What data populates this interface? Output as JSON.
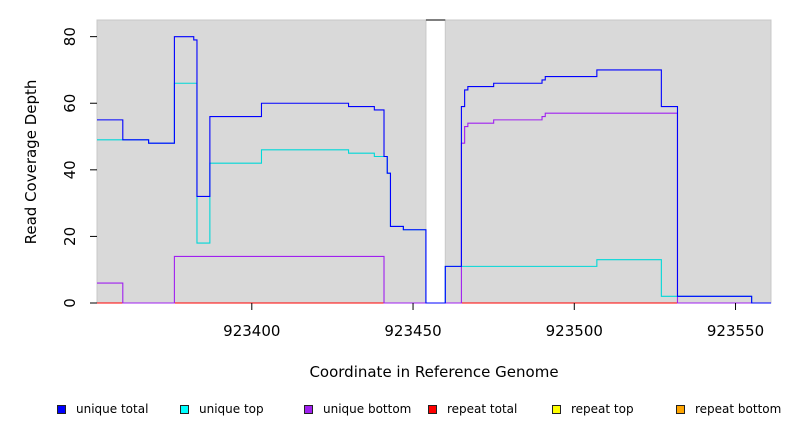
{
  "chart_data": {
    "type": "line",
    "xlabel": "Coordinate in Reference Genome",
    "ylabel": "Read Coverage Depth",
    "xlim": [
      923352,
      923561
    ],
    "ylim": [
      0,
      85
    ],
    "x_ticks": [
      923400,
      923450,
      923500,
      923550
    ],
    "y_ticks": [
      0,
      20,
      40,
      60,
      80
    ],
    "gap_region": [
      923454,
      923460
    ],
    "series": [
      {
        "name": "unique total",
        "color": "#0000ff",
        "points": [
          [
            923352,
            55
          ],
          [
            923360,
            55
          ],
          [
            923360,
            49
          ],
          [
            923368,
            49
          ],
          [
            923368,
            48
          ],
          [
            923376,
            48
          ],
          [
            923376,
            80
          ],
          [
            923382,
            80
          ],
          [
            923382,
            79
          ],
          [
            923383,
            79
          ],
          [
            923383,
            32
          ],
          [
            923387,
            32
          ],
          [
            923387,
            56
          ],
          [
            923403,
            56
          ],
          [
            923403,
            60
          ],
          [
            923430,
            60
          ],
          [
            923430,
            59
          ],
          [
            923438,
            59
          ],
          [
            923438,
            58
          ],
          [
            923441,
            58
          ],
          [
            923441,
            44
          ],
          [
            923442,
            44
          ],
          [
            923442,
            39
          ],
          [
            923443,
            39
          ],
          [
            923443,
            23
          ],
          [
            923447,
            23
          ],
          [
            923447,
            22
          ],
          [
            923454,
            22
          ],
          [
            923454,
            0
          ],
          [
            923460,
            0
          ],
          [
            923460,
            11
          ],
          [
            923465,
            11
          ],
          [
            923465,
            59
          ],
          [
            923466,
            59
          ],
          [
            923466,
            64
          ],
          [
            923467,
            64
          ],
          [
            923467,
            65
          ],
          [
            923475,
            65
          ],
          [
            923475,
            66
          ],
          [
            923490,
            66
          ],
          [
            923490,
            67
          ],
          [
            923491,
            67
          ],
          [
            923491,
            68
          ],
          [
            923507,
            68
          ],
          [
            923507,
            70
          ],
          [
            923527,
            70
          ],
          [
            923527,
            59
          ],
          [
            923532,
            59
          ],
          [
            923532,
            2
          ],
          [
            923555,
            2
          ],
          [
            923555,
            0
          ],
          [
            923561,
            0
          ]
        ]
      },
      {
        "name": "unique top",
        "color": "#00d8d8",
        "points": [
          [
            923352,
            49
          ],
          [
            923360,
            49
          ],
          [
            923360,
            49
          ],
          [
            923368,
            49
          ],
          [
            923368,
            48
          ],
          [
            923376,
            48
          ],
          [
            923376,
            66
          ],
          [
            923383,
            66
          ],
          [
            923383,
            18
          ],
          [
            923387,
            18
          ],
          [
            923387,
            42
          ],
          [
            923403,
            42
          ],
          [
            923403,
            46
          ],
          [
            923430,
            46
          ],
          [
            923430,
            45
          ],
          [
            923438,
            45
          ],
          [
            923438,
            44
          ],
          [
            923441,
            44
          ],
          [
            923441,
            44
          ],
          [
            923442,
            44
          ],
          [
            923442,
            39
          ],
          [
            923443,
            39
          ],
          [
            923443,
            23
          ],
          [
            923447,
            23
          ],
          [
            923447,
            22
          ],
          [
            923454,
            22
          ],
          [
            923454,
            0
          ],
          [
            923460,
            0
          ],
          [
            923460,
            11
          ],
          [
            923507,
            11
          ],
          [
            923507,
            13
          ],
          [
            923527,
            13
          ],
          [
            923527,
            2
          ],
          [
            923555,
            2
          ],
          [
            923555,
            0
          ],
          [
            923561,
            0
          ]
        ]
      },
      {
        "name": "unique bottom",
        "color": "#a020f0",
        "points": [
          [
            923352,
            6
          ],
          [
            923360,
            6
          ],
          [
            923360,
            0
          ],
          [
            923376,
            0
          ],
          [
            923376,
            14
          ],
          [
            923441,
            14
          ],
          [
            923441,
            0
          ],
          [
            923465,
            0
          ],
          [
            923465,
            48
          ],
          [
            923466,
            48
          ],
          [
            923466,
            53
          ],
          [
            923467,
            53
          ],
          [
            923467,
            54
          ],
          [
            923475,
            54
          ],
          [
            923475,
            55
          ],
          [
            923490,
            55
          ],
          [
            923490,
            56
          ],
          [
            923491,
            56
          ],
          [
            923491,
            57
          ],
          [
            923532,
            57
          ],
          [
            923532,
            0
          ],
          [
            923561,
            0
          ]
        ]
      },
      {
        "name": "repeat total",
        "color": "#ff0000",
        "points": [
          [
            923352,
            0
          ],
          [
            923561,
            0
          ]
        ]
      },
      {
        "name": "repeat top",
        "color": "#ffff00",
        "points": [
          [
            923352,
            0
          ],
          [
            923561,
            0
          ]
        ]
      },
      {
        "name": "repeat bottom",
        "color": "#ffa500",
        "points": [
          [
            923352,
            0
          ],
          [
            923561,
            0
          ]
        ]
      }
    ],
    "legend": [
      {
        "label": "unique total",
        "color": "#0000ff"
      },
      {
        "label": "unique top",
        "color": "#00ffff"
      },
      {
        "label": "unique bottom",
        "color": "#a020f0"
      },
      {
        "label": "repeat total",
        "color": "#ff0000"
      },
      {
        "label": "repeat top",
        "color": "#ffff00"
      },
      {
        "label": "repeat bottom",
        "color": "#ffa500"
      }
    ]
  }
}
